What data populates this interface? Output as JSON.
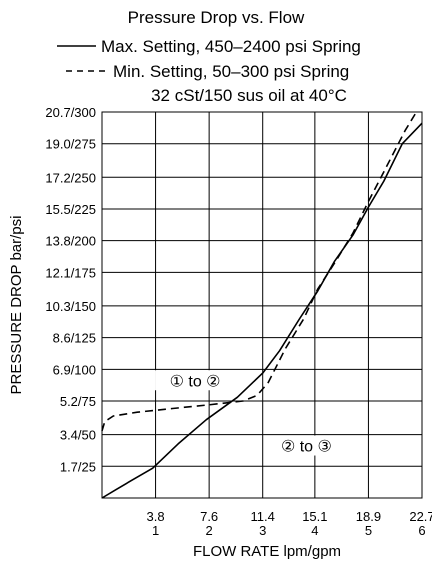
{
  "chart_data": {
    "type": "line",
    "title": "Pressure Drop vs. Flow",
    "xlabel": "FLOW RATE lpm/gpm",
    "ylabel": "PRESSURE DROP bar/psi",
    "legend": [
      {
        "label": "Max. Setting, 450–2400 psi Spring",
        "style": "solid"
      },
      {
        "label": "Min. Setting, 50–300 psi Spring",
        "style": "dashed"
      }
    ],
    "note": "32 cSt/150 sus oil at 40°C",
    "legend_placement": "top",
    "grid": true,
    "xlim": [
      0,
      22.7
    ],
    "ylim": [
      0,
      20.7
    ],
    "x_ticks": [
      {
        "value": 3.8,
        "lpm": "3.8",
        "gpm": "1"
      },
      {
        "value": 7.6,
        "lpm": "7.6",
        "gpm": "2"
      },
      {
        "value": 11.4,
        "lpm": "11.4",
        "gpm": "3"
      },
      {
        "value": 15.1,
        "lpm": "15.1",
        "gpm": "4"
      },
      {
        "value": 18.9,
        "lpm": "18.9",
        "gpm": "5"
      },
      {
        "value": 22.7,
        "lpm": "22.7",
        "gpm": "6"
      }
    ],
    "y_ticks": [
      {
        "value": 1.7,
        "label": "1.7/25"
      },
      {
        "value": 3.4,
        "label": "3.4/50"
      },
      {
        "value": 5.2,
        "label": "5.2/75"
      },
      {
        "value": 6.9,
        "label": "6.9/100"
      },
      {
        "value": 8.6,
        "label": "8.6/125"
      },
      {
        "value": 10.3,
        "label": "10.3/150"
      },
      {
        "value": 12.1,
        "label": "12.1/175"
      },
      {
        "value": 13.8,
        "label": "13.8/200"
      },
      {
        "value": 15.5,
        "label": "15.5/225"
      },
      {
        "value": 17.2,
        "label": "17.2/250"
      },
      {
        "value": 19.0,
        "label": "19.0/275"
      },
      {
        "value": 20.7,
        "label": "20.7/300"
      }
    ],
    "series": [
      {
        "name": "Max. Setting, 450–2400 psi Spring",
        "style": "solid",
        "x": [
          0,
          1.0,
          2.0,
          3.6,
          5.4,
          7.4,
          9.6,
          11.4,
          12.6,
          14.0,
          15.3,
          16.5,
          17.8,
          18.9,
          20.0,
          21.3,
          22.7
        ],
        "y": [
          0,
          0.45,
          0.9,
          1.6,
          2.9,
          4.2,
          5.4,
          6.7,
          7.9,
          9.6,
          11.1,
          12.7,
          14.1,
          15.6,
          17.0,
          19.0,
          20.1
        ]
      },
      {
        "name": "Min. Setting, 50–300 psi Spring",
        "style": "dashed",
        "x": [
          0,
          0.2,
          0.8,
          2.5,
          5.0,
          7.6,
          10.0,
          11.0,
          11.8,
          13.0,
          14.3,
          15.3,
          16.5,
          17.8,
          18.9,
          20.0,
          21.5,
          22.3
        ],
        "y": [
          3.6,
          4.1,
          4.4,
          4.6,
          4.8,
          5.0,
          5.2,
          5.5,
          6.2,
          8.0,
          9.6,
          11.2,
          12.6,
          14.2,
          15.9,
          17.5,
          19.7,
          20.7
        ]
      }
    ],
    "annotations": [
      {
        "text": "① to ②",
        "x": 6.6,
        "y": 6.1
      },
      {
        "text": "② to ③",
        "x": 14.5,
        "y": 2.6
      }
    ]
  }
}
